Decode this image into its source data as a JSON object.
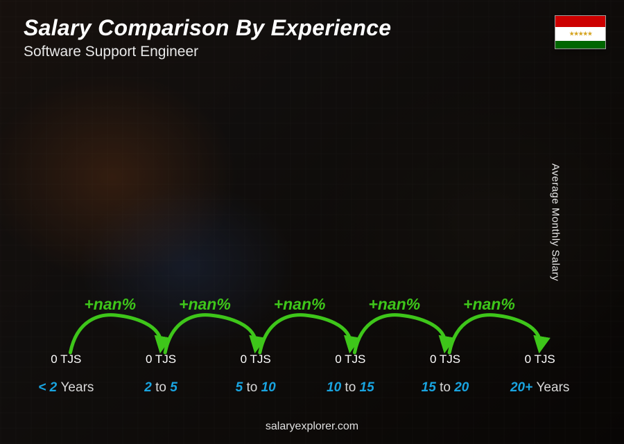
{
  "header": {
    "title": "Salary Comparison By Experience",
    "subtitle": "Software Support Engineer"
  },
  "flag": {
    "stripe_colors": [
      "#cc0000",
      "#ffffff",
      "#006600"
    ],
    "emblem": "★★★★★"
  },
  "chart": {
    "type": "bar",
    "bar_gradient_top": "#29c0f0",
    "bar_gradient_bottom": "#0a94d4",
    "bar_border_radius": 6,
    "value_color": "#ffffff",
    "value_fontsize": 17,
    "x_label_color": "#19a4e0",
    "x_label_accent": "#19a4e0",
    "x_label_word_color": "#d8d8d8",
    "x_label_fontsize": 19,
    "arrow_color": "#3ec61a",
    "arrow_label_color": "#3ec61a",
    "arrow_fontsize": 23,
    "background_overlay": "rgba(0,0,0,0.35)",
    "bars": [
      {
        "label_pre": "<",
        "label_num": "2",
        "label_word": "Years",
        "value_text": "0 TJS",
        "height_pct": 30,
        "delta": null
      },
      {
        "label_pre": "",
        "label_num": "2",
        "label_mid": " to ",
        "label_num2": "5",
        "value_text": "0 TJS",
        "height_pct": 42,
        "delta": "+nan%"
      },
      {
        "label_pre": "",
        "label_num": "5",
        "label_mid": " to ",
        "label_num2": "10",
        "value_text": "0 TJS",
        "height_pct": 55,
        "delta": "+nan%"
      },
      {
        "label_pre": "",
        "label_num": "10",
        "label_mid": " to ",
        "label_num2": "15",
        "value_text": "0 TJS",
        "height_pct": 68,
        "delta": "+nan%"
      },
      {
        "label_pre": "",
        "label_num": "15",
        "label_mid": " to ",
        "label_num2": "20",
        "value_text": "0 TJS",
        "height_pct": 82,
        "delta": "+nan%"
      },
      {
        "label_pre": "",
        "label_num": "20+",
        "label_word": "Years",
        "value_text": "0 TJS",
        "height_pct": 95,
        "delta": "+nan%"
      }
    ]
  },
  "y_axis_label": "Average Monthly Salary",
  "footer": "salaryexplorer.com"
}
